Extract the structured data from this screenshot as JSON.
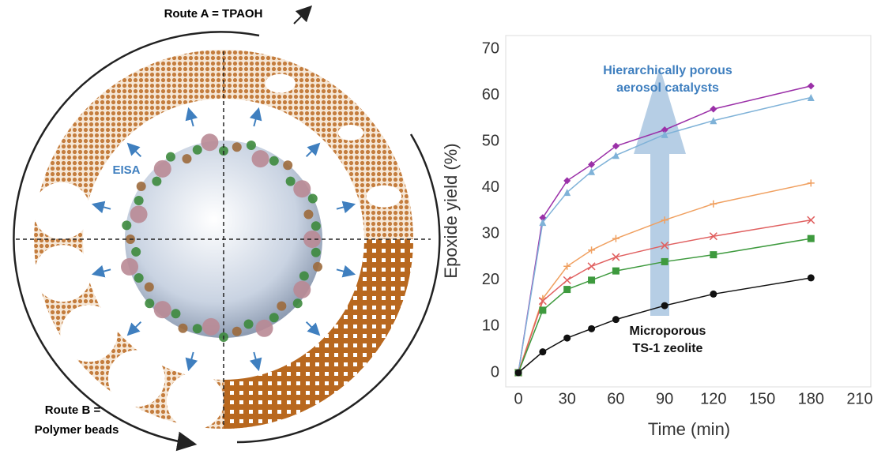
{
  "diagram": {
    "route_a": "Route A = TPAOH",
    "route_b": [
      "Route B =",
      "Polymer beads"
    ],
    "eisa": "EISA"
  },
  "chart_data": {
    "type": "line",
    "x_label": "Time (min)",
    "y_label": "Epoxide yield (%)",
    "annotations": [
      [
        "Hierarchically porous",
        "aerosol catalysts"
      ],
      [
        "Microporous",
        "TS-1 zeolite"
      ]
    ],
    "x": [
      0,
      15,
      30,
      45,
      60,
      90,
      120,
      180
    ],
    "series": [
      {
        "color": "#9b30a8",
        "marker": "diamond",
        "values": [
          0,
          33.5,
          41.5,
          45,
          49,
          52.5,
          57,
          62
        ]
      },
      {
        "color": "#7fb2d8",
        "marker": "triangle",
        "values": [
          0,
          32.5,
          39,
          43.5,
          47,
          51.5,
          54.5,
          59.5
        ]
      },
      {
        "color": "#f0a060",
        "marker": "plus",
        "values": [
          0,
          16,
          23,
          26.5,
          29,
          33,
          36.5,
          41
        ]
      },
      {
        "color": "#e06060",
        "marker": "cross",
        "values": [
          0,
          15.5,
          20,
          23,
          25,
          27.5,
          29.5,
          33
        ]
      },
      {
        "color": "#3e9a3e",
        "marker": "square",
        "values": [
          0,
          13.5,
          18,
          20,
          22,
          24,
          25.5,
          29
        ]
      },
      {
        "color": "#111111",
        "marker": "circle",
        "values": [
          0,
          4.5,
          7.5,
          9.5,
          11.5,
          14.5,
          17,
          20.5
        ]
      }
    ],
    "xlim": [
      0,
      210
    ],
    "xticks": [
      0,
      30,
      60,
      90,
      120,
      150,
      180,
      210
    ],
    "ylim": [
      0,
      70
    ],
    "yticks": [
      0,
      10,
      20,
      30,
      40,
      50,
      60,
      70
    ]
  }
}
